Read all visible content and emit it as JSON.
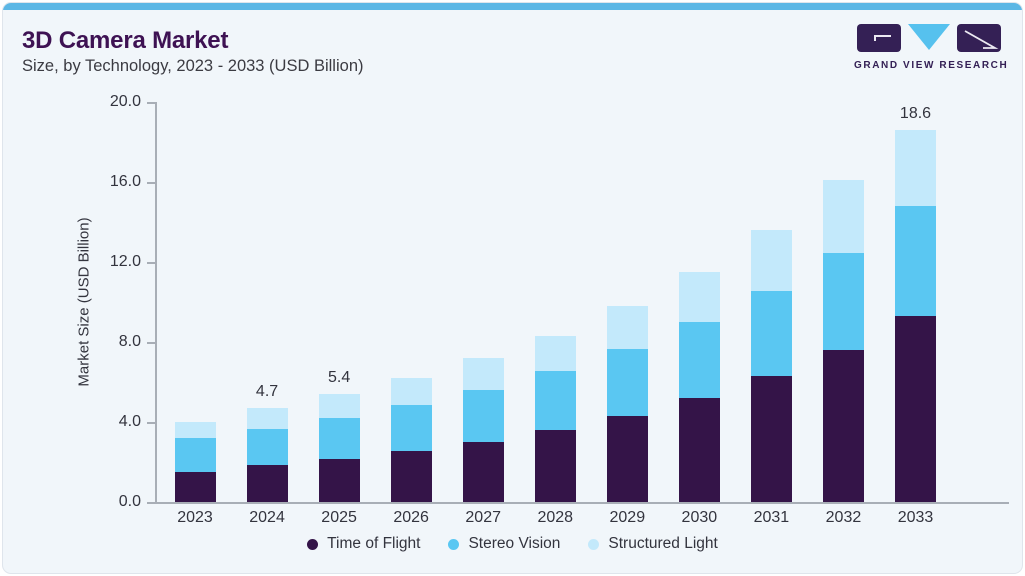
{
  "header": {
    "title": "3D Camera Market",
    "subtitle": "Size, by Technology, 2023 - 2033 (USD Billion)"
  },
  "logo": {
    "text": "GRAND VIEW RESEARCH"
  },
  "colors": {
    "top_strip": "#5cb7e5",
    "card_bg": "#f1f6fa",
    "card_border": "#dfe5ec",
    "title": "#3e1253",
    "subtitle": "#3b3b42",
    "axis": "#a8aeb6",
    "text": "#33343e",
    "logo_purple": "#342055",
    "logo_blue": "#56c1ee"
  },
  "chart_data": {
    "type": "bar",
    "stacked": true,
    "title": "3D Camera Market",
    "subtitle": "Size, by Technology, 2023 - 2033 (USD Billion)",
    "xlabel": "",
    "ylabel": "Market Size (USD Billion)",
    "ylim": [
      0,
      20
    ],
    "y_ticks": [
      "0.0",
      "4.0",
      "8.0",
      "12.0",
      "16.0",
      "20.0"
    ],
    "grid": false,
    "legend_position": "bottom",
    "categories": [
      "2023",
      "2024",
      "2025",
      "2026",
      "2027",
      "2028",
      "2029",
      "2030",
      "2031",
      "2032",
      "2033"
    ],
    "series": [
      {
        "name": "Time of Flight",
        "color": "#341448",
        "values": [
          1.5,
          1.85,
          2.15,
          2.55,
          3.0,
          3.6,
          4.3,
          5.2,
          6.3,
          7.6,
          9.3
        ]
      },
      {
        "name": "Stereo Vision",
        "color": "#5ac7f2",
        "values": [
          1.7,
          1.8,
          2.05,
          2.3,
          2.6,
          2.95,
          3.35,
          3.8,
          4.25,
          4.85,
          5.5
        ]
      },
      {
        "name": "Structured Light",
        "color": "#c3e9fb",
        "values": [
          0.8,
          1.05,
          1.2,
          1.35,
          1.6,
          1.75,
          2.15,
          2.5,
          3.05,
          3.65,
          3.8
        ]
      }
    ],
    "totals": [
      4.0,
      4.7,
      5.4,
      6.2,
      7.2,
      8.3,
      9.8,
      11.5,
      13.6,
      16.1,
      18.6
    ],
    "value_labels": [
      "",
      "4.7",
      "5.4",
      "",
      "",
      "",
      "",
      "",
      "",
      "",
      "18.6"
    ]
  }
}
